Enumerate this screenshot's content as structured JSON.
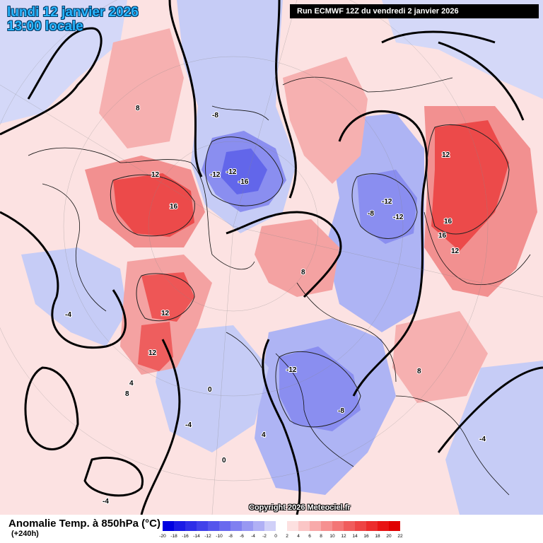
{
  "header": {
    "date_line": "lundi 12 janvier 2026",
    "time_line": "13:00 locale",
    "run_info": "Run ECMWF 12Z du vendredi 2 janvier 2026"
  },
  "footer": {
    "variable": "Anomalie Temp. à 850hPa (°C)",
    "lead_time": "(+240h)",
    "copyright": "Copyright 2026 Meteociel.fr"
  },
  "legend": {
    "ticks": [
      "-20",
      "-18",
      "-16",
      "-14",
      "-12",
      "-10",
      "-8",
      "-6",
      "-4",
      "-2",
      "0",
      "2",
      "4",
      "6",
      "8",
      "10",
      "12",
      "14",
      "16",
      "18",
      "20",
      "22"
    ],
    "colors": [
      "#0000e0",
      "#1a1ae6",
      "#2e2ee8",
      "#4242ea",
      "#5656ec",
      "#6a6aee",
      "#8080f0",
      "#9898f2",
      "#b0b0f5",
      "#d0d0f8",
      "#ffffff",
      "#fde0e0",
      "#fbc6c6",
      "#f8aaaa",
      "#f69090",
      "#f37676",
      "#f05c5c",
      "#ee4444",
      "#ec2c2c",
      "#e81414",
      "#e00000"
    ]
  },
  "map_labels": [
    {
      "text": "16",
      "name": "label-16-greenland"
    },
    {
      "text": "12",
      "name": "label-12-greenland"
    },
    {
      "text": "-16",
      "name": "label-minus16-arctic"
    },
    {
      "text": "-12",
      "name": "label-minus12-arctic"
    },
    {
      "text": "-12",
      "name": "label-minus12-arctic-2"
    },
    {
      "text": "-12",
      "name": "label-minus12-siberia"
    },
    {
      "text": "-12",
      "name": "label-minus12-siberia-2"
    },
    {
      "text": "-8",
      "name": "label-minus8-siberia"
    },
    {
      "text": "12",
      "name": "label-12-canada"
    },
    {
      "text": "12",
      "name": "label-12-atlantic"
    },
    {
      "text": "12",
      "name": "label-12-asia"
    },
    {
      "text": "16",
      "name": "label-16-asia"
    },
    {
      "text": "16",
      "name": "label-16-asia-2"
    },
    {
      "text": "12",
      "name": "label-12-asia-2"
    },
    {
      "text": "-12",
      "name": "label-minus12-europe"
    },
    {
      "text": "-8",
      "name": "label-minus8-europe"
    },
    {
      "text": "8",
      "name": "label-8-alaska"
    },
    {
      "text": "8",
      "name": "label-8-pacific"
    },
    {
      "text": "4",
      "name": "label-4-pacific"
    },
    {
      "text": "8",
      "name": "label-8-china"
    },
    {
      "text": "0",
      "name": "label-0-pacific"
    },
    {
      "text": "-4",
      "name": "label-minus4-usa"
    },
    {
      "text": "-4",
      "name": "label-minus4-atlantic"
    },
    {
      "text": "0",
      "name": "label-0-atlantic"
    },
    {
      "text": "-4",
      "name": "label-minus4-africa"
    },
    {
      "text": "4",
      "name": "label-4-africa"
    },
    {
      "text": "8",
      "name": "label-8-russia"
    },
    {
      "text": "-8",
      "name": "label-minus8-arctic"
    },
    {
      "text": "-4",
      "name": "label-minus4-india"
    }
  ]
}
